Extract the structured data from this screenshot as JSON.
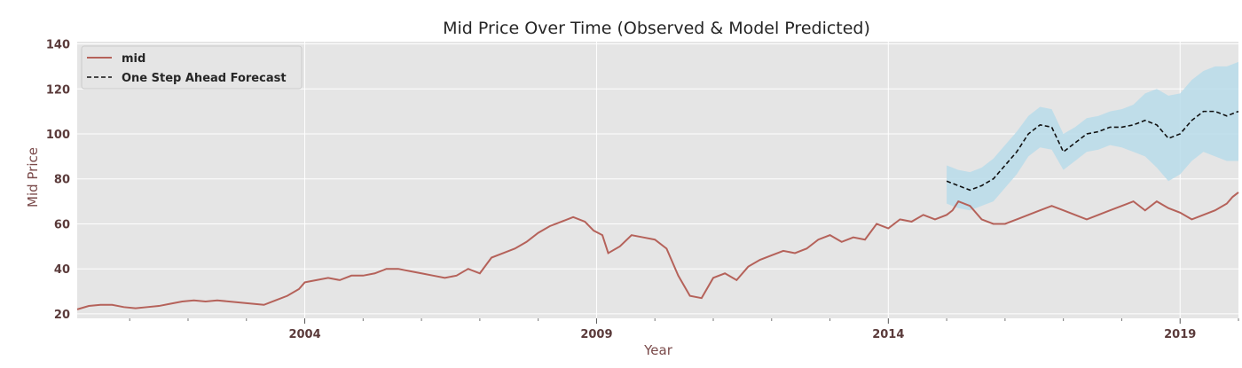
{
  "chart_data": {
    "type": "line",
    "title": "Mid Price Over Time (Observed & Model Predicted)",
    "xlabel": "Year",
    "ylabel": "Mid Price",
    "xlim": [
      2000.1,
      2020.0
    ],
    "ylim": [
      18,
      141
    ],
    "yticks": [
      20,
      40,
      60,
      80,
      100,
      120,
      140
    ],
    "xticks": [
      2004,
      2009,
      2014,
      2019
    ],
    "grid": true,
    "legend_position": "top-left",
    "colors": {
      "background": "#e5e5e5",
      "grid": "#ffffff",
      "mid": "#b5625a",
      "forecast": "#111111",
      "band": "#b8dcea"
    },
    "series": [
      {
        "name": "mid",
        "style": "solid",
        "x": [
          2000.1,
          2000.3,
          2000.5,
          2000.7,
          2000.9,
          2001.1,
          2001.3,
          2001.5,
          2001.7,
          2001.9,
          2002.1,
          2002.3,
          2002.5,
          2002.7,
          2002.9,
          2003.1,
          2003.3,
          2003.5,
          2003.7,
          2003.9,
          2004.0,
          2004.1,
          2004.2,
          2004.4,
          2004.6,
          2004.8,
          2005.0,
          2005.2,
          2005.4,
          2005.6,
          2005.8,
          2006.0,
          2006.2,
          2006.4,
          2006.6,
          2006.8,
          2007.0,
          2007.2,
          2007.4,
          2007.6,
          2007.8,
          2008.0,
          2008.2,
          2008.4,
          2008.6,
          2008.8,
          2008.95,
          2009.1,
          2009.2,
          2009.4,
          2009.6,
          2009.8,
          2010.0,
          2010.2,
          2010.4,
          2010.6,
          2010.8,
          2011.0,
          2011.2,
          2011.4,
          2011.6,
          2011.8,
          2012.0,
          2012.2,
          2012.4,
          2012.6,
          2012.8,
          2013.0,
          2013.2,
          2013.4,
          2013.6,
          2013.8,
          2014.0,
          2014.2,
          2014.4,
          2014.6,
          2014.8,
          2015.0,
          2015.1,
          2015.2,
          2015.4,
          2015.6,
          2015.8,
          2016.0,
          2016.2,
          2016.4,
          2016.6,
          2016.8,
          2017.0,
          2017.2,
          2017.4,
          2017.6,
          2017.8,
          2018.0,
          2018.2,
          2018.4,
          2018.6,
          2018.8,
          2019.0,
          2019.2,
          2019.4,
          2019.6,
          2019.8,
          2019.9,
          2020.0
        ],
        "y": [
          22,
          23.5,
          24,
          24,
          23,
          22.5,
          23,
          23.5,
          24.5,
          25.5,
          26,
          25.5,
          26,
          25.5,
          25,
          24.5,
          24,
          26,
          28,
          31,
          34,
          34.5,
          35,
          36,
          35,
          37,
          37,
          38,
          40,
          40,
          39,
          38,
          37,
          36,
          37,
          40,
          38,
          45,
          47,
          49,
          52,
          56,
          59,
          61,
          63,
          61,
          57,
          55,
          47,
          50,
          55,
          54,
          53,
          49,
          37,
          28,
          27,
          36,
          38,
          35,
          41,
          44,
          46,
          48,
          47,
          49,
          53,
          55,
          52,
          54,
          53,
          60,
          58,
          62,
          61,
          64,
          62,
          64,
          66,
          70,
          68,
          62,
          60,
          60,
          62,
          64,
          66,
          68,
          66,
          64,
          62,
          64,
          66,
          68,
          70,
          66,
          70,
          67,
          65,
          62,
          64,
          66,
          69,
          72,
          74
        ]
      },
      {
        "name": "One Step Ahead Forecast",
        "style": "dashed",
        "x": [
          2015.0,
          2015.2,
          2015.4,
          2015.6,
          2015.8,
          2016.0,
          2016.2,
          2016.4,
          2016.6,
          2016.8,
          2017.0,
          2017.2,
          2017.4,
          2017.6,
          2017.8,
          2018.0,
          2018.2,
          2018.4,
          2018.6,
          2018.8,
          2019.0,
          2019.2,
          2019.4,
          2019.6,
          2019.8,
          2020.0
        ],
        "y": [
          79,
          77,
          75,
          77,
          80,
          86,
          92,
          100,
          104,
          103,
          92,
          96,
          100,
          101,
          103,
          103,
          104,
          106,
          104,
          98,
          100,
          106,
          110,
          110,
          108,
          110
        ]
      }
    ],
    "band": {
      "x": [
        2015.0,
        2015.2,
        2015.4,
        2015.6,
        2015.8,
        2016.0,
        2016.2,
        2016.4,
        2016.6,
        2016.8,
        2017.0,
        2017.2,
        2017.4,
        2017.6,
        2017.8,
        2018.0,
        2018.2,
        2018.4,
        2018.6,
        2018.8,
        2019.0,
        2019.2,
        2019.4,
        2019.6,
        2019.8,
        2020.0
      ],
      "lower": [
        69,
        67,
        66,
        68,
        70,
        76,
        82,
        90,
        94,
        93,
        84,
        88,
        92,
        93,
        95,
        94,
        92,
        90,
        85,
        79,
        82,
        88,
        92,
        90,
        88,
        88
      ],
      "upper": [
        86,
        84,
        83,
        85,
        89,
        95,
        101,
        108,
        112,
        111,
        100,
        103,
        107,
        108,
        110,
        111,
        113,
        118,
        120,
        117,
        118,
        124,
        128,
        130,
        130,
        132
      ]
    }
  }
}
